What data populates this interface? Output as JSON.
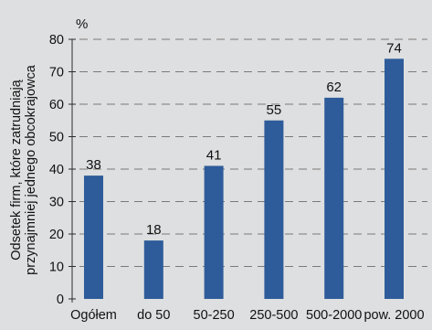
{
  "chart_data": {
    "type": "bar",
    "categories": [
      "Ogółem",
      "do 50",
      "50-250",
      "250-500",
      "500-2000",
      "pow. 2000"
    ],
    "values": [
      38,
      18,
      41,
      55,
      62,
      74
    ],
    "data_labels": [
      "38",
      "18",
      "41",
      "55",
      "62",
      "74"
    ],
    "y_unit": "%",
    "ylabel_line1": "Odsetek firm, które zatrudniają",
    "ylabel_line2": "przynajmniej jednego obcokrajowca",
    "ylim": [
      0,
      80
    ],
    "yticks": [
      0,
      10,
      20,
      30,
      40,
      50,
      60,
      70,
      80
    ],
    "ytick_labels": [
      "0",
      "10",
      "20",
      "30",
      "40",
      "50",
      "60",
      "70",
      "80"
    ],
    "grid": "dashed horizontal",
    "colors": {
      "bar": "#2e5c9a",
      "background": "#dedfe0",
      "grid": "#7a7a7a",
      "axis": "#2b2b2b",
      "text": "#111111"
    }
  }
}
